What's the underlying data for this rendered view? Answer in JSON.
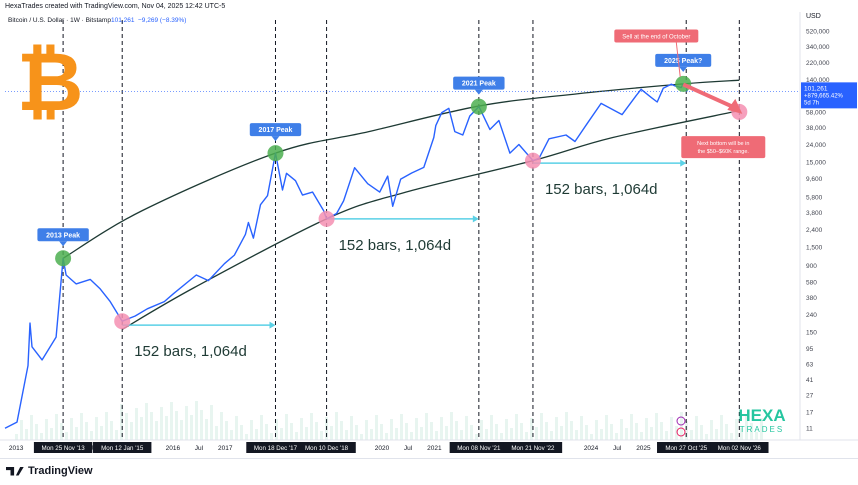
{
  "top_caption": "HexaTrades created with TradingView.com, Nov 04, 2025 12:42 UTC-5",
  "symbol_line": {
    "name": "Bitcoin / U.S. Dollar · 1W · Bitstamp",
    "price": "101,261",
    "change": "−9,269 (−8.39%)"
  },
  "branding": {
    "bitcoin_symbol": "₿",
    "hexa_line1": "HEXA",
    "hexa_line2": "TRADES",
    "footer_logo": "TradingView"
  },
  "colors": {
    "price_line": "#2962ff",
    "curve": "#1e3a34",
    "peak_marker": "#4caf50",
    "bottom_marker": "#f48fb1",
    "arrow": "#5ad1e6",
    "label_blue": "#3f7fe8",
    "label_red": "#ef6b76",
    "forecast": "#ef6b76",
    "hexa": "#26c6a0",
    "bitcoin": "#f7931a"
  },
  "price_badge": {
    "price": "101,261",
    "change": "+879,665.42%",
    "countdown": "5d 7h"
  },
  "y_axis_title": "USD",
  "y_ticks": [
    "520,000",
    "340,000",
    "220,000",
    "140,000",
    "90,000",
    "58,000",
    "38,000",
    "24,000",
    "15,000",
    "9,600",
    "5,800",
    "3,800",
    "2,400",
    "1,500",
    "900",
    "580",
    "380",
    "240",
    "150",
    "95",
    "63",
    "41",
    "27",
    "17",
    "11"
  ],
  "x_ticks": [
    "2013",
    "Jul",
    "2016",
    "Jul",
    "2017",
    "2020",
    "Jul",
    "2021",
    "Jul",
    "2024",
    "Jul",
    "2025",
    "Jul",
    "202"
  ],
  "x_highlight_labels": [
    "Mon 25 Nov '13",
    "Mon 12 Jan '15",
    "Mon 18 Dec '17",
    "Mon 10 Dec '18",
    "Mon 08 Nov '21",
    "Mon 21 Nov '22",
    "Mon 27 Oct '25",
    "Mon 02 Nov '26"
  ],
  "chart_data": {
    "type": "line",
    "title": "Bitcoin / U.S. Dollar · 1W · Bitstamp",
    "ylabel": "USD",
    "y_scale": "log",
    "ylim": [
      8,
      700000
    ],
    "xlim": [
      "2012-10-15",
      "2027-12-31"
    ],
    "grid": false,
    "series": [
      {
        "name": "BTCUSD",
        "x": [
          "2012-10-15",
          "2013-01-07",
          "2013-03-25",
          "2013-04-08",
          "2013-04-22",
          "2013-07-01",
          "2013-10-07",
          "2013-11-25",
          "2013-12-16",
          "2014-02-24",
          "2014-06-02",
          "2014-08-11",
          "2014-10-20",
          "2015-01-12",
          "2015-04-13",
          "2015-07-06",
          "2015-11-02",
          "2016-01-04",
          "2016-06-13",
          "2016-09-05",
          "2016-12-26",
          "2017-03-06",
          "2017-05-22",
          "2017-06-12",
          "2017-07-17",
          "2017-09-04",
          "2017-10-23",
          "2017-12-18",
          "2018-02-05",
          "2018-03-05",
          "2018-05-07",
          "2018-06-25",
          "2018-09-03",
          "2018-11-19",
          "2018-12-10",
          "2019-02-18",
          "2019-04-08",
          "2019-06-24",
          "2019-09-23",
          "2019-12-16",
          "2020-02-10",
          "2020-03-16",
          "2020-05-11",
          "2020-07-27",
          "2020-10-19",
          "2020-12-28",
          "2021-01-11",
          "2021-02-22",
          "2021-04-12",
          "2021-05-24",
          "2021-07-19",
          "2021-09-06",
          "2021-11-08",
          "2022-01-24",
          "2022-03-28",
          "2022-06-13",
          "2022-08-15",
          "2022-11-21",
          "2023-01-02",
          "2023-03-13",
          "2023-07-10",
          "2023-09-11",
          "2023-12-04",
          "2024-03-11",
          "2024-08-05",
          "2024-11-11",
          "2024-12-16",
          "2025-02-24",
          "2025-04-07",
          "2025-05-19",
          "2025-07-14",
          "2025-08-11",
          "2025-09-22",
          "2025-10-06",
          "2025-10-27",
          "2025-11-03"
        ],
        "values": [
          11,
          13,
          60,
          190,
          100,
          70,
          130,
          1100,
          700,
          550,
          620,
          480,
          340,
          200,
          230,
          280,
          340,
          420,
          700,
          600,
          950,
          1200,
          2100,
          2900,
          1900,
          4700,
          6000,
          19000,
          7000,
          11000,
          9000,
          6100,
          6600,
          4000,
          3200,
          3700,
          5200,
          12800,
          8300,
          6600,
          10200,
          4500,
          9400,
          11100,
          12900,
          29000,
          40000,
          57000,
          64000,
          34000,
          31000,
          52000,
          67000,
          36000,
          46000,
          19000,
          24000,
          15500,
          16500,
          28000,
          31000,
          26000,
          42000,
          73000,
          54000,
          90000,
          107000,
          86000,
          76000,
          110000,
          123000,
          117000,
          112000,
          124000,
          114000,
          101261
        ]
      }
    ],
    "curves": [
      {
        "label": "peak curve",
        "x": [
          "2013-11-25",
          "2015-06-01",
          "2017-12-18",
          "2019-10-01",
          "2021-11-08",
          "2023-10-01",
          "2025-10-06",
          "2026-11-02"
        ],
        "values": [
          1100,
          4000,
          19000,
          34000,
          68000,
          95000,
          124000,
          137000
        ]
      },
      {
        "label": "bottom curve",
        "x": [
          "2015-01-12",
          "2016-06-01",
          "2018-12-10",
          "2020-06-01",
          "2022-11-21",
          "2024-06-01",
          "2026-11-02"
        ],
        "values": [
          160,
          500,
          3200,
          6500,
          15500,
          29000,
          60000
        ]
      }
    ],
    "markers": [
      {
        "type": "peak",
        "label": "2013 Peak",
        "x": "2013-11-25",
        "value": 1100
      },
      {
        "type": "peak",
        "label": "2017 Peak",
        "x": "2017-12-18",
        "value": 19000
      },
      {
        "type": "peak",
        "label": "2021 Peak",
        "x": "2021-11-08",
        "value": 67000
      },
      {
        "type": "peak",
        "label": "2025 Peak?",
        "x": "2025-10-06",
        "value": 124000
      },
      {
        "type": "bottom",
        "label": "",
        "x": "2015-01-12",
        "value": 200
      },
      {
        "type": "bottom",
        "label": "",
        "x": "2018-12-10",
        "value": 3200
      },
      {
        "type": "bottom",
        "label": "",
        "x": "2022-11-21",
        "value": 15500
      },
      {
        "type": "bottom",
        "label": "",
        "x": "2026-11-02",
        "value": 58000
      }
    ],
    "ranges": [
      {
        "label": "152 bars, 1,064d",
        "x_start": "2015-01-12",
        "x_end": "2017-12-18",
        "value": 180
      },
      {
        "label": "152 bars, 1,064d",
        "x_start": "2018-12-10",
        "x_end": "2021-11-08",
        "value": 3200
      },
      {
        "label": "152 bars, 1,064d",
        "x_start": "2022-11-21",
        "x_end": "2025-10-27",
        "value": 14500
      }
    ],
    "vertical_lines": [
      "2013-11-25",
      "2015-01-12",
      "2017-12-18",
      "2018-12-10",
      "2021-11-08",
      "2022-11-21",
      "2025-10-27",
      "2026-11-02"
    ],
    "annotations": [
      {
        "text": "Sell at the end of October",
        "x": "2025-04-01",
        "value": 460000
      },
      {
        "text": "Next bottom will be in the $50–$60K range.",
        "x": "2026-06-01",
        "value": 23000
      }
    ],
    "forecast": {
      "from": {
        "x": "2025-10-06",
        "value": 122000
      },
      "to": {
        "x": "2026-11-02",
        "value": 58000
      }
    }
  }
}
